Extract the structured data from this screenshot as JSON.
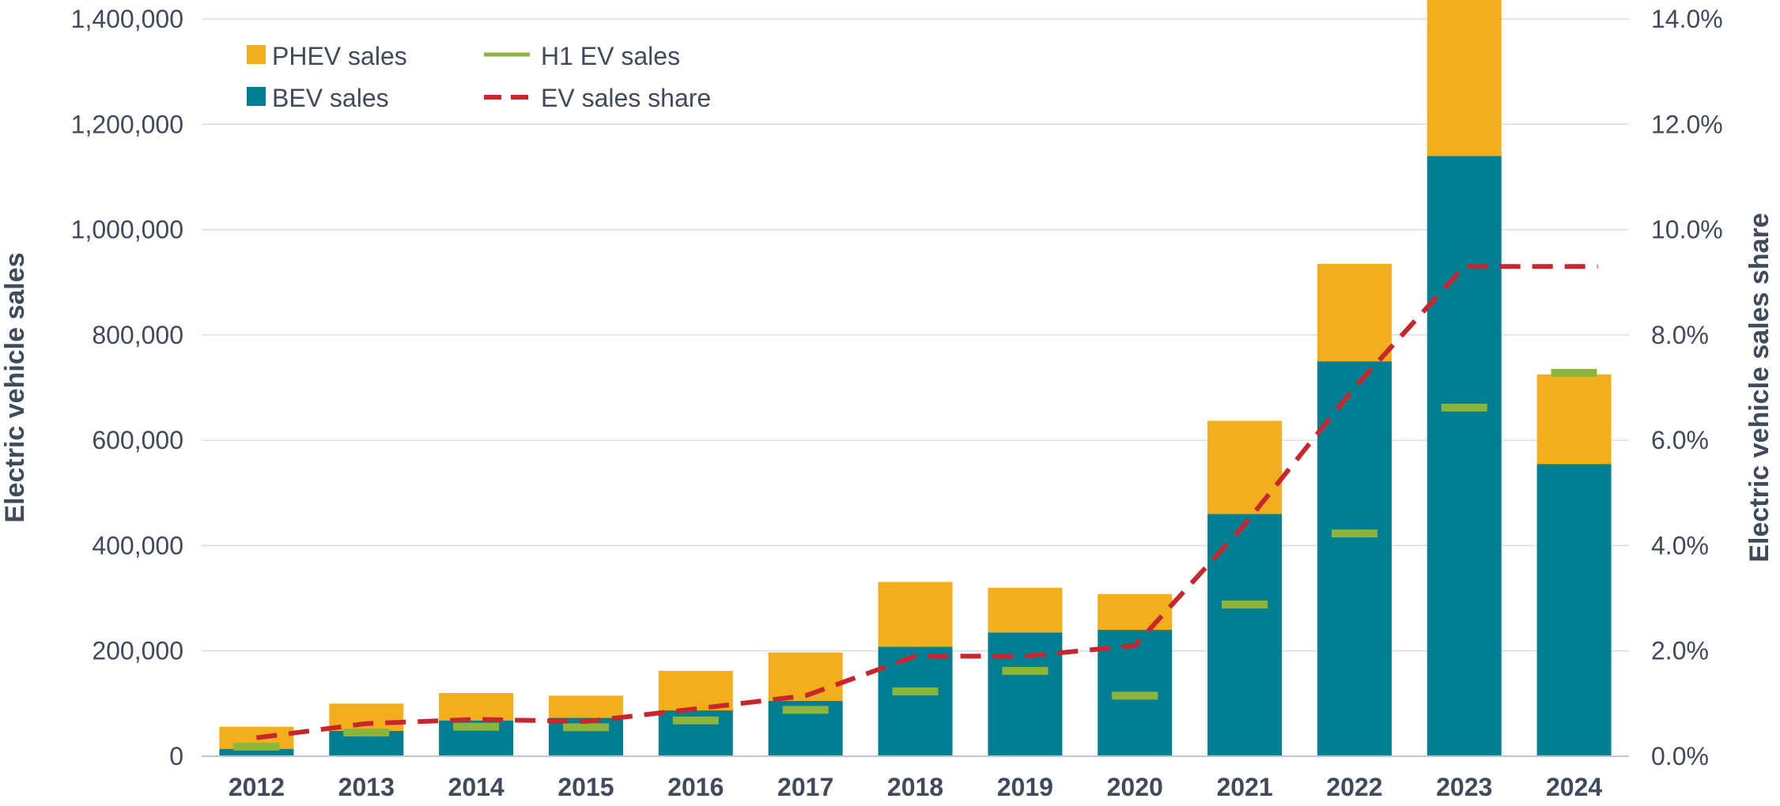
{
  "chart_data": {
    "type": "bar",
    "stacked": true,
    "categories": [
      "2012",
      "2013",
      "2014",
      "2015",
      "2016",
      "2017",
      "2018",
      "2019",
      "2020",
      "2021",
      "2022",
      "2023",
      "2024"
    ],
    "series": [
      {
        "name": "BEV sales",
        "kind": "bar",
        "axis": "left",
        "color": "#007f93",
        "values": [
          14000,
          48000,
          68000,
          73000,
          87000,
          105000,
          208000,
          235000,
          240000,
          460000,
          750000,
          1140000,
          555000
        ]
      },
      {
        "name": "PHEV sales",
        "kind": "bar",
        "axis": "left",
        "color": "#f3ae1d",
        "values": [
          42000,
          52000,
          52000,
          42000,
          75000,
          92000,
          123000,
          85000,
          68000,
          177000,
          185000,
          298000,
          170000
        ]
      },
      {
        "name": "H1 EV sales",
        "kind": "marker",
        "axis": "left",
        "color": "#8db53c",
        "values": [
          18000,
          45000,
          56000,
          55000,
          68000,
          88000,
          123000,
          162000,
          115000,
          288000,
          423000,
          662000,
          728000
        ]
      },
      {
        "name": "EV sales share",
        "kind": "line",
        "style": "dashed",
        "axis": "right",
        "color": "#c8262e",
        "values": [
          0.35,
          0.62,
          0.7,
          0.66,
          0.9,
          1.15,
          1.9,
          1.9,
          2.1,
          4.4,
          7.0,
          9.3,
          9.3
        ]
      }
    ],
    "y_left": {
      "label": "Electric vehicle sales",
      "lim": [
        0,
        1400000
      ],
      "ticks": [
        0,
        200000,
        400000,
        600000,
        800000,
        1000000,
        1200000,
        1400000
      ],
      "tick_labels": [
        "0",
        "200,000",
        "400,000",
        "600,000",
        "800,000",
        "1,000,000",
        "1,200,000",
        "1,400,000"
      ]
    },
    "y_right": {
      "label": "Electric vehicle sales share",
      "lim": [
        0,
        14
      ],
      "ticks": [
        0,
        2,
        4,
        6,
        8,
        10,
        12,
        14
      ],
      "tick_labels": [
        "0.0%",
        "2.0%",
        "4.0%",
        "6.0%",
        "8.0%",
        "10.0%",
        "12.0%",
        "14.0%"
      ]
    },
    "grid": true,
    "legend": {
      "placement": "top-left",
      "items": [
        {
          "label": "PHEV sales",
          "symbol": "square",
          "color": "#f3ae1d"
        },
        {
          "label": "H1 EV sales",
          "symbol": "line",
          "color": "#8db53c"
        },
        {
          "label": "BEV sales",
          "symbol": "square",
          "color": "#007f93"
        },
        {
          "label": "EV sales share",
          "symbol": "dashed-line",
          "color": "#c8262e"
        }
      ]
    }
  }
}
